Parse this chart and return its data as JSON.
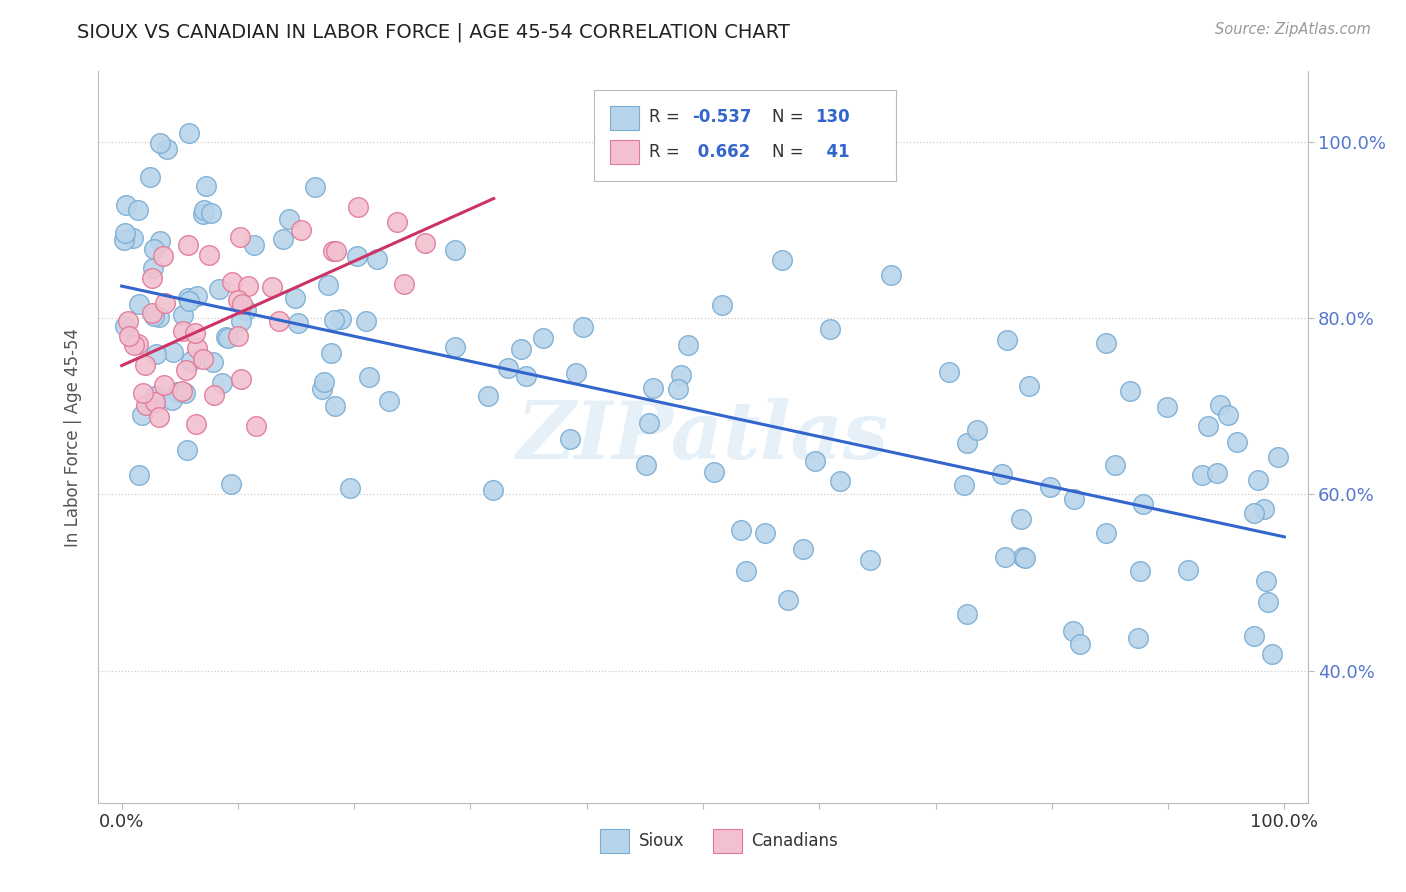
{
  "title": "SIOUX VS CANADIAN IN LABOR FORCE | AGE 45-54 CORRELATION CHART",
  "source_text": "Source: ZipAtlas.com",
  "ylabel": "In Labor Force | Age 45-54",
  "xlim": [
    -0.02,
    1.02
  ],
  "ylim": [
    0.25,
    1.08
  ],
  "x_ticks": [
    0.0,
    0.1,
    0.2,
    0.3,
    0.4,
    0.5,
    0.6,
    0.7,
    0.8,
    0.9,
    1.0
  ],
  "x_tick_labels": [
    "0.0%",
    "",
    "",
    "",
    "",
    "",
    "",
    "",
    "",
    "",
    "100.0%"
  ],
  "y_tick_labels": [
    "40.0%",
    "60.0%",
    "80.0%",
    "100.0%"
  ],
  "y_ticks": [
    0.4,
    0.6,
    0.8,
    1.0
  ],
  "sioux_color": "#b8d4ea",
  "sioux_edge_color": "#7aadd4",
  "canadian_color": "#f2c0cf",
  "canadian_edge_color": "#e07898",
  "blue_line_color": "#3366cc",
  "pink_line_color": "#cc3366",
  "R_sioux": -0.537,
  "N_sioux": 130,
  "R_canadian": 0.662,
  "N_canadian": 41,
  "watermark": "ZIPatlas",
  "background_color": "#ffffff",
  "grid_color": "#cccccc",
  "right_tick_color": "#5577cc",
  "sioux_line_start_y": 0.836,
  "sioux_line_end_y": 0.545,
  "canadian_line_start_x": 0.0,
  "canadian_line_start_y": 0.755,
  "canadian_line_end_x": 0.32,
  "canadian_line_end_y": 0.975
}
